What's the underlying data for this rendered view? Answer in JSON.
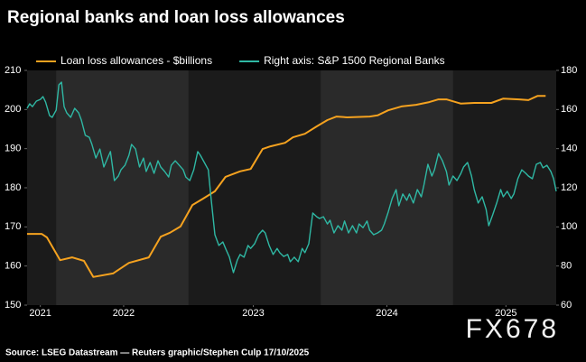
{
  "chart_data": {
    "type": "line",
    "title": "Regional banks and loan loss allowances",
    "source": "Source: LSEG Datastream — Reuters graphic/Stephen Culp 17/10/2025",
    "watermark": "FX678",
    "xlim": [
      2021.78,
      2025.78
    ],
    "xticks": [
      {
        "value": 2021.88,
        "label": "2021"
      },
      {
        "value": 2022.51,
        "label": "2022"
      },
      {
        "value": 2023.49,
        "label": "2023"
      },
      {
        "value": 2024.5,
        "label": "2024"
      },
      {
        "value": 2025.4,
        "label": "2025"
      }
    ],
    "ylim": [
      150,
      210
    ],
    "yticks": [
      150,
      160,
      170,
      180,
      190,
      200,
      210
    ],
    "y2lim": [
      60,
      180
    ],
    "y2ticks": [
      60,
      80,
      100,
      120,
      140,
      160,
      180
    ],
    "grid": false,
    "series": [
      {
        "name": "Loan loss allowances - $billions",
        "color": "#f5a21f",
        "x": [
          2021.78,
          2021.89,
          2021.93,
          2022.03,
          2022.12,
          2022.21,
          2022.28,
          2022.43,
          2022.55,
          2022.7,
          2022.79,
          2022.86,
          2022.94,
          2023.03,
          2023.11,
          2023.2,
          2023.28,
          2023.39,
          2023.47,
          2023.56,
          2023.62,
          2023.73,
          2023.79,
          2023.88,
          2023.97,
          2024.05,
          2024.12,
          2024.2,
          2024.37,
          2024.43,
          2024.51,
          2024.61,
          2024.72,
          2024.82,
          2024.89,
          2024.95,
          2025.06,
          2025.16,
          2025.29,
          2025.38,
          2025.5,
          2025.57,
          2025.64,
          2025.7
        ],
        "values": [
          168.2,
          168.2,
          167.3,
          161.5,
          162.2,
          161.3,
          157.2,
          158.1,
          160.8,
          162.2,
          167.5,
          168.5,
          170.1,
          175.6,
          177.2,
          179.1,
          182.8,
          184.2,
          184.8,
          189.9,
          190.6,
          191.5,
          192.9,
          193.8,
          195.7,
          197.3,
          198.2,
          198.0,
          198.2,
          198.5,
          199.8,
          200.8,
          201.2,
          201.9,
          202.6,
          202.6,
          201.5,
          201.7,
          201.7,
          202.8,
          202.6,
          202.4,
          203.5,
          203.5
        ]
      },
      {
        "name": "Right axis: S&P 1500 Regional Banks",
        "color": "#2fb8a4",
        "axis": "y2",
        "x": [
          2021.78,
          2021.8,
          2021.82,
          2021.85,
          2021.88,
          2021.9,
          2021.92,
          2021.95,
          2021.97,
          2022.0,
          2022.02,
          2022.04,
          2022.06,
          2022.08,
          2022.11,
          2022.14,
          2022.17,
          2022.19,
          2022.22,
          2022.25,
          2022.27,
          2022.3,
          2022.33,
          2022.36,
          2022.38,
          2022.41,
          2022.44,
          2022.47,
          2022.49,
          2022.52,
          2022.55,
          2022.57,
          2022.6,
          2022.63,
          2022.66,
          2022.68,
          2022.71,
          2022.74,
          2022.77,
          2022.79,
          2022.82,
          2022.85,
          2022.87,
          2022.9,
          2022.93,
          2022.96,
          2022.98,
          2023.01,
          2023.04,
          2023.07,
          2023.09,
          2023.12,
          2023.15,
          2023.17,
          2023.2,
          2023.23,
          2023.26,
          2023.28,
          2023.31,
          2023.34,
          2023.37,
          2023.39,
          2023.42,
          2023.45,
          2023.47,
          2023.5,
          2023.53,
          2023.56,
          2023.58,
          2023.61,
          2023.64,
          2023.67,
          2023.69,
          2023.72,
          2023.75,
          2023.77,
          2023.8,
          2023.83,
          2023.86,
          2023.88,
          2023.91,
          2023.94,
          2023.97,
          2023.99,
          2024.02,
          2024.05,
          2024.07,
          2024.1,
          2024.13,
          2024.16,
          2024.18,
          2024.21,
          2024.24,
          2024.27,
          2024.29,
          2024.32,
          2024.35,
          2024.37,
          2024.4,
          2024.43,
          2024.46,
          2024.48,
          2024.51,
          2024.54,
          2024.57,
          2024.59,
          2024.62,
          2024.65,
          2024.67,
          2024.7,
          2024.73,
          2024.76,
          2024.78,
          2024.81,
          2024.84,
          2024.86,
          2024.89,
          2024.92,
          2024.95,
          2024.97,
          2025.0,
          2025.03,
          2025.06,
          2025.08,
          2025.11,
          2025.14,
          2025.16,
          2025.19,
          2025.22,
          2025.25,
          2025.27,
          2025.3,
          2025.33,
          2025.36,
          2025.38,
          2025.41,
          2025.44,
          2025.46,
          2025.49,
          2025.52,
          2025.55,
          2025.57,
          2025.6,
          2025.63,
          2025.66,
          2025.68,
          2025.71,
          2025.74,
          2025.76,
          2025.78
        ],
        "values": [
          160.6,
          162.9,
          161.5,
          164.3,
          165.2,
          166.6,
          163.8,
          156.9,
          156,
          159.7,
          172.6,
          174,
          161.5,
          158.3,
          156,
          160.6,
          158.3,
          154.6,
          146.8,
          145.8,
          142.2,
          135.2,
          139.8,
          130.6,
          133.8,
          138.5,
          123.7,
          126,
          129.2,
          131.5,
          136.6,
          142.2,
          139.8,
          130.6,
          135.2,
          128.3,
          132.9,
          127.4,
          133.8,
          130.6,
          128.3,
          125.5,
          131.5,
          133.8,
          131.5,
          129.2,
          125.5,
          123.7,
          129.2,
          138.5,
          136.6,
          132.9,
          129.2,
          115.4,
          96,
          90.5,
          92.3,
          89,
          84.5,
          76.6,
          83.1,
          85.9,
          84.5,
          90.5,
          89,
          91.4,
          96,
          98.3,
          96.9,
          90.5,
          85.9,
          89,
          86.8,
          84.9,
          85.9,
          82.2,
          84.5,
          82.2,
          89,
          86.8,
          91.4,
          107.1,
          105.2,
          104.3,
          105.2,
          101.5,
          103.4,
          96.9,
          100.6,
          98.3,
          103,
          96.9,
          100.6,
          96.9,
          101.5,
          99.6,
          103,
          98.3,
          96,
          96.9,
          98.3,
          101.5,
          107.5,
          114.5,
          119.1,
          110.8,
          116.8,
          113.6,
          116.8,
          112.2,
          119.1,
          115.4,
          121.4,
          132,
          126,
          129.2,
          137.5,
          133.8,
          128.3,
          121.4,
          126,
          123.7,
          127.4,
          130.6,
          132.9,
          126,
          119.1,
          112.2,
          115.4,
          108.9,
          100.6,
          106.2,
          112.2,
          119.1,
          115.4,
          118.2,
          114.5,
          116.8,
          124.6,
          129.2,
          127.4,
          126,
          124.6,
          132,
          132.9,
          130.2,
          131.5,
          128.3,
          124.6,
          118.2
        ]
      }
    ]
  }
}
